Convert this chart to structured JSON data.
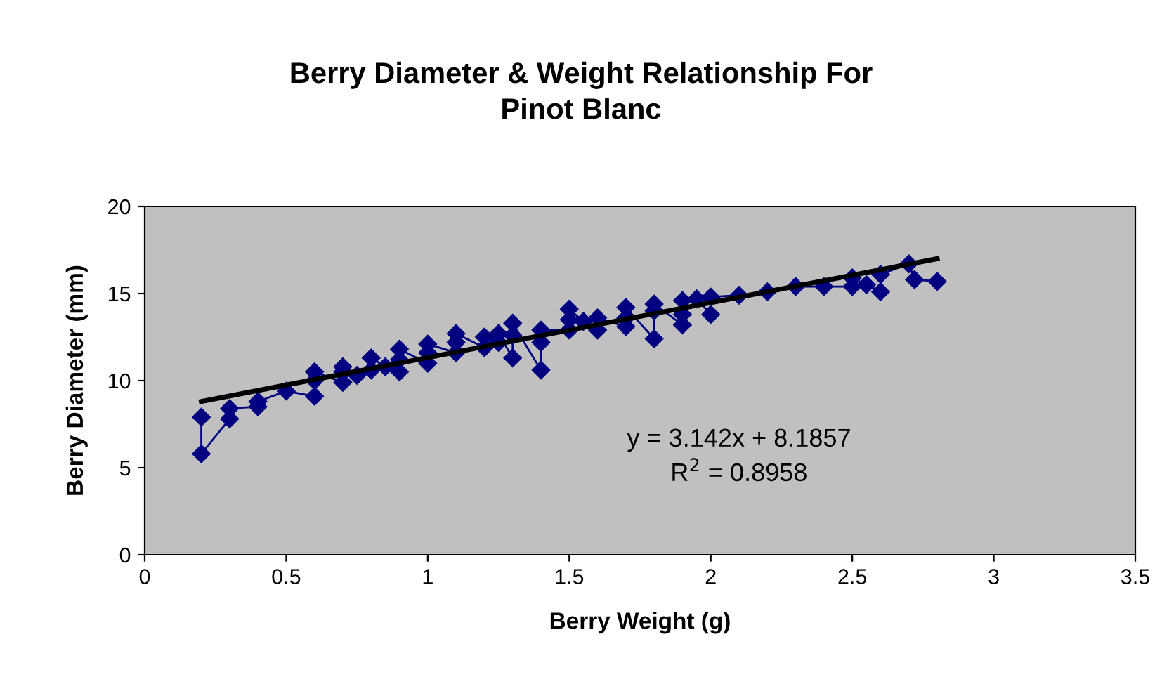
{
  "chart_data": {
    "type": "line",
    "title": "Berry Diameter & Weight Relationship For\nPinot Blanc",
    "xlabel": "Berry Weight (g)",
    "ylabel": "Berry Diameter (mm)",
    "series": [
      {
        "marker": "diamond",
        "color": "#000080",
        "x": [
          0.2,
          0.2,
          0.3,
          0.3,
          0.4,
          0.4,
          0.5,
          0.6,
          0.6,
          0.6,
          0.7,
          0.7,
          0.7,
          0.75,
          0.8,
          0.8,
          0.85,
          0.9,
          0.9,
          0.9,
          1.0,
          1.0,
          1.0,
          1.1,
          1.1,
          1.1,
          1.2,
          1.2,
          1.25,
          1.25,
          1.3,
          1.3,
          1.3,
          1.4,
          1.4,
          1.4,
          1.5,
          1.5,
          1.5,
          1.55,
          1.6,
          1.6,
          1.7,
          1.7,
          1.7,
          1.8,
          1.8,
          1.8,
          1.9,
          1.9,
          1.9,
          1.95,
          2.0,
          2.0,
          2.1,
          2.2,
          2.3,
          2.4,
          2.5,
          2.5,
          2.55,
          2.6,
          2.6,
          2.7,
          2.72,
          2.8
        ],
        "values": [
          7.9,
          5.8,
          7.8,
          8.4,
          8.5,
          8.8,
          9.4,
          9.1,
          10.0,
          10.5,
          9.9,
          10.5,
          10.8,
          10.3,
          10.6,
          11.3,
          10.8,
          10.5,
          11.2,
          11.8,
          11.0,
          11.6,
          12.1,
          11.6,
          12.2,
          12.7,
          11.9,
          12.5,
          12.2,
          12.7,
          11.3,
          12.6,
          13.3,
          10.6,
          12.2,
          12.9,
          12.9,
          13.5,
          14.1,
          13.4,
          12.9,
          13.6,
          13.1,
          13.6,
          14.2,
          12.4,
          14.0,
          14.4,
          13.2,
          13.8,
          14.6,
          14.7,
          13.8,
          14.8,
          14.9,
          15.1,
          15.4,
          15.4,
          15.4,
          15.9,
          15.5,
          15.1,
          16.1,
          16.7,
          15.8,
          15.7
        ]
      },
      {
        "marker": "none",
        "color": "#000000",
        "x": [
          0.2,
          2.8
        ],
        "values": [
          8.8,
          17.0
        ]
      }
    ],
    "annotations": [
      "y = 3.142x + 8.1857\nR$^{2}$ = 0.8958"
    ],
    "xlim": [
      0,
      3.5
    ],
    "xticks": [
      0,
      0.5,
      1,
      1.5,
      2,
      2.5,
      3,
      3.5
    ],
    "ylim": [
      0,
      20
    ],
    "yticks": [
      0,
      5,
      10,
      15,
      20
    ],
    "grid": false,
    "legend": false
  }
}
